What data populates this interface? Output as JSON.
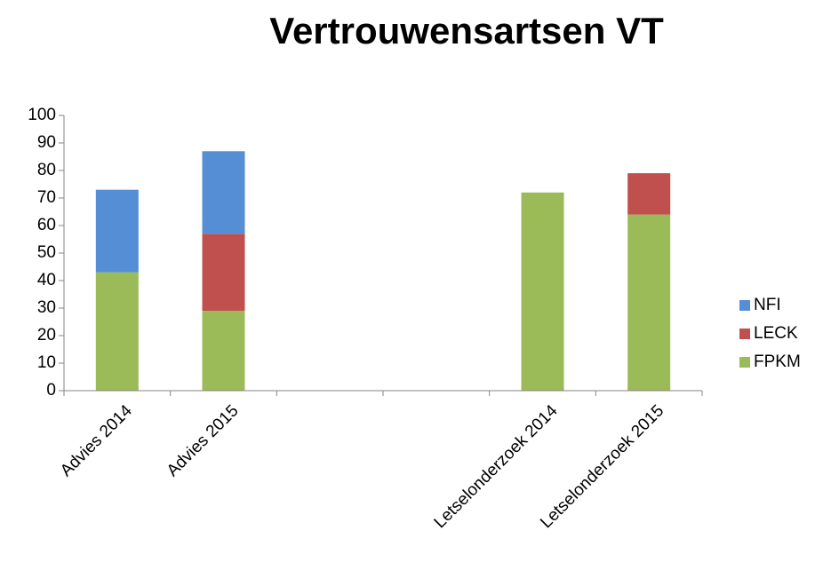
{
  "chart_data": {
    "type": "stacked_bar",
    "title": "Vertrouwensartsen VT",
    "categories": [
      "Advies 2014",
      "Advies 2015",
      null,
      null,
      "Letselonderzoek 2014",
      "Letselonderzoek 2015"
    ],
    "series": [
      {
        "name": "FPKM",
        "color": "#9bbb59",
        "values": [
          43,
          29,
          null,
          null,
          72,
          64
        ]
      },
      {
        "name": "LECK",
        "color": "#c0504d",
        "values": [
          0,
          28,
          null,
          null,
          0,
          15
        ]
      },
      {
        "name": "NFI",
        "color": "#558ed5",
        "values": [
          30,
          30,
          null,
          null,
          0,
          0
        ]
      }
    ],
    "ylim": [
      0,
      100
    ],
    "yticks": [
      0,
      10,
      20,
      30,
      40,
      50,
      60,
      70,
      80,
      90,
      100
    ],
    "legend": "right"
  }
}
